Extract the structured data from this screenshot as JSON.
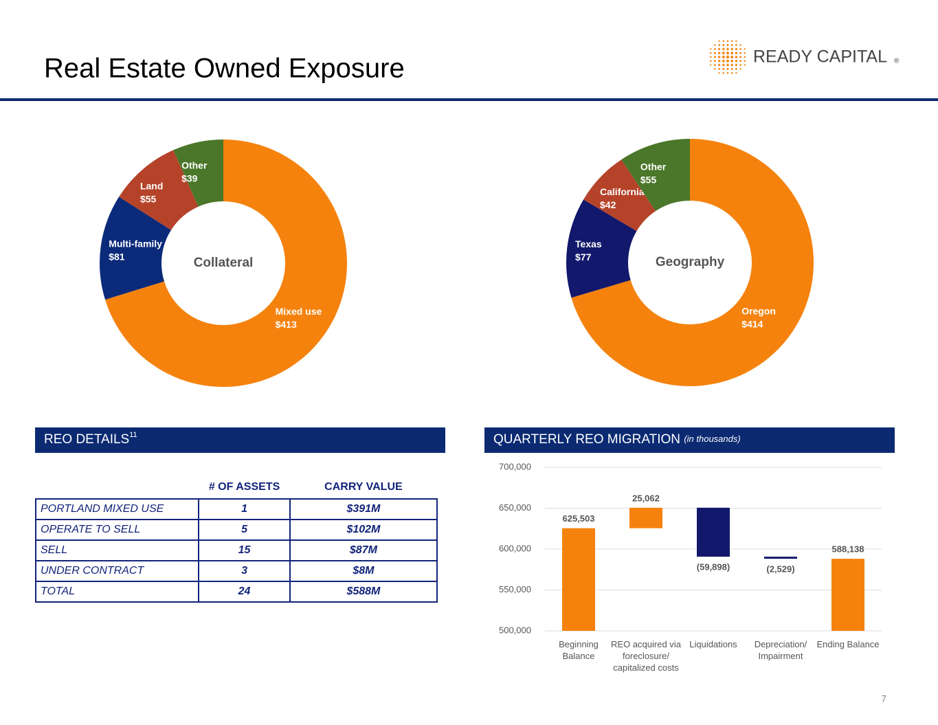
{
  "title": "Real Estate Owned Exposure",
  "logo": {
    "name": "READY CAPITAL",
    "mark": "®"
  },
  "page_number": 7,
  "reo_details": {
    "heading": "REO DETAILS",
    "footnote": "11",
    "columns": [
      "# OF ASSETS",
      "CARRY VALUE"
    ],
    "rows": [
      [
        "PORTLAND MIXED USE",
        1,
        "$391M"
      ],
      [
        "OPERATE TO SELL",
        5,
        "$102M"
      ],
      [
        "SELL",
        15,
        "$87M"
      ],
      [
        "UNDER CONTRACT",
        3,
        "$8M"
      ],
      [
        "TOTAL",
        24,
        "$588M"
      ]
    ]
  },
  "chart_data": [
    {
      "type": "donut",
      "title": "Collateral",
      "categories": [
        "Mixed use",
        "Multi-family",
        "Land",
        "Other"
      ],
      "values": [
        413,
        81,
        55,
        39
      ],
      "value_labels": [
        "$413",
        "$81",
        "$55",
        "$39"
      ],
      "colors": [
        "#f5820d",
        "#0b2a7a",
        "#b5432a",
        "#4a7729"
      ]
    },
    {
      "type": "donut",
      "title": "Geography",
      "categories": [
        "Oregon",
        "Texas",
        "California",
        "Other"
      ],
      "values": [
        414,
        77,
        42,
        55
      ],
      "value_labels": [
        "$414",
        "$77",
        "$42",
        "$55"
      ],
      "colors": [
        "#f5820d",
        "#12186b",
        "#b5432a",
        "#4a7729"
      ]
    },
    {
      "type": "waterfall",
      "title": "QUARTERLY REO MIGRATION",
      "subtitle": "(in thousands)",
      "categories": [
        "Beginning Balance",
        "REO acquired via foreclosure/ capitalized costs",
        "Liquidations",
        "Depreciation/ Impairment",
        "Ending Balance"
      ],
      "values": [
        625503,
        25062,
        -59898,
        -2529,
        588138
      ],
      "value_labels": [
        "625,503",
        "25,062",
        "(59,898)",
        "(2,529)",
        "588,138"
      ],
      "color": "#f5820d",
      "negative_color": "#12186b",
      "ylim": [
        500000,
        700000
      ],
      "yticks": [
        {
          "value": 500000,
          "label": "500,000"
        },
        {
          "value": 550000,
          "label": "550,000"
        },
        {
          "value": 600000,
          "label": "600,000"
        },
        {
          "value": 650000,
          "label": "650,000"
        },
        {
          "value": 700000,
          "label": "700,000"
        }
      ],
      "grid": true
    }
  ]
}
